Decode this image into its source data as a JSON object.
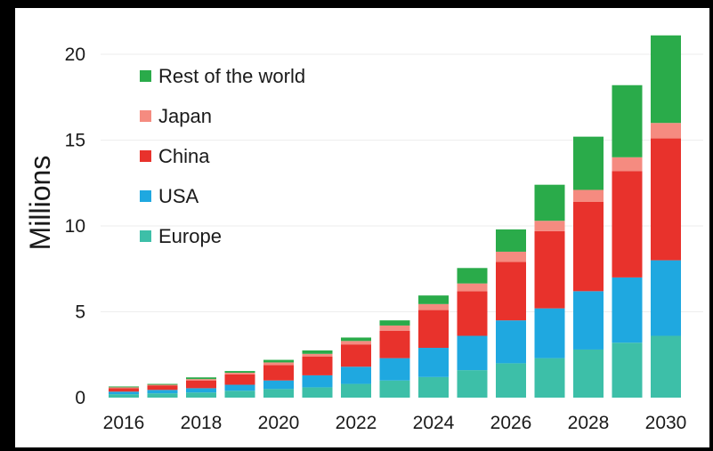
{
  "chart_data": {
    "type": "bar",
    "stacked": true,
    "xlabel": "",
    "ylabel": "Millions",
    "ylim": [
      0,
      21
    ],
    "yticks": [
      0,
      5,
      10,
      15,
      20
    ],
    "x_tick_labels": [
      "2016",
      "2018",
      "2020",
      "2022",
      "2024",
      "2026",
      "2028",
      "2030"
    ],
    "categories": [
      "2016",
      "2017",
      "2018",
      "2019",
      "2020",
      "2021",
      "2022",
      "2023",
      "2024",
      "2025",
      "2026",
      "2027",
      "2028",
      "2029",
      "2030"
    ],
    "grid": "horizontal",
    "legend_position": "top-left",
    "series": [
      {
        "name": "Europe",
        "color": "#3dbfa8",
        "values": [
          0.2,
          0.25,
          0.3,
          0.4,
          0.5,
          0.6,
          0.8,
          1.0,
          1.2,
          1.6,
          2.0,
          2.3,
          2.8,
          3.2,
          3.6
        ]
      },
      {
        "name": "USA",
        "color": "#1fa8e0",
        "values": [
          0.15,
          0.2,
          0.25,
          0.35,
          0.5,
          0.7,
          1.0,
          1.3,
          1.7,
          2.0,
          2.5,
          2.9,
          3.4,
          3.8,
          4.4
        ]
      },
      {
        "name": "China",
        "color": "#e8322c",
        "values": [
          0.2,
          0.25,
          0.45,
          0.6,
          0.9,
          1.1,
          1.3,
          1.6,
          2.2,
          2.6,
          3.4,
          4.5,
          5.2,
          6.2,
          7.1
        ]
      },
      {
        "name": "Japan",
        "color": "#f58b80",
        "values": [
          0.05,
          0.05,
          0.08,
          0.1,
          0.15,
          0.15,
          0.2,
          0.3,
          0.35,
          0.45,
          0.6,
          0.6,
          0.7,
          0.8,
          0.9
        ]
      },
      {
        "name": "Rest of the world",
        "color": "#2aab4a",
        "values": [
          0.05,
          0.05,
          0.1,
          0.1,
          0.15,
          0.2,
          0.2,
          0.3,
          0.5,
          0.9,
          1.3,
          2.1,
          3.1,
          4.2,
          5.1
        ]
      }
    ],
    "legend_order": [
      "Rest of the world",
      "Japan",
      "China",
      "USA",
      "Europe"
    ]
  }
}
